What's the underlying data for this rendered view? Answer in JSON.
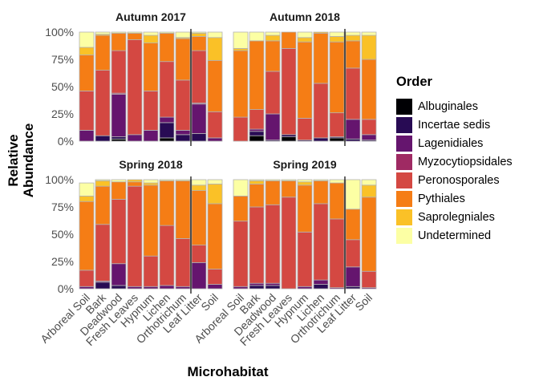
{
  "chart_data": {
    "type": "bar",
    "stacked": true,
    "facet_titles": [
      "Autumn 2017",
      "Autumn 2018",
      "Spring 2018",
      "Spring 2019"
    ],
    "xlabel": "Microhabitat",
    "ylabel": "Relative\nAbundance",
    "ylim": [
      0,
      1
    ],
    "yticks": [
      0,
      0.25,
      0.5,
      0.75,
      1
    ],
    "ytick_labels": [
      "0%",
      "25%",
      "50%",
      "75%",
      "100%"
    ],
    "categories": [
      "Arboreal Soil",
      "Bark",
      "Deadwood",
      "Fresh Leaves",
      "Hypnum",
      "Lichen",
      "Orthotrichum",
      "Leaf Litter",
      "Soil"
    ],
    "legend_title": "Order",
    "legend_position": "right",
    "orders": [
      "Albuginales",
      "Incertae sedis",
      "Lagenidiales",
      "Myzocytiopsidales",
      "Peronosporales",
      "Pythiales",
      "Saprolegniales",
      "Undetermined"
    ],
    "colors": [
      "#000004",
      "#280B54",
      "#65156E",
      "#9F2A63",
      "#D44842",
      "#F57D15",
      "#FAC127",
      "#FCFFA4"
    ],
    "panels": [
      {
        "title": "Autumn 2017",
        "bars": [
          {
            "category": "Arboreal Soil",
            "values": [
              0.0,
              0.0,
              0.1,
              0.0,
              0.36,
              0.33,
              0.07,
              0.14
            ]
          },
          {
            "category": "Bark",
            "values": [
              0.0,
              0.05,
              0.0,
              0.0,
              0.6,
              0.32,
              0.01,
              0.02
            ]
          },
          {
            "category": "Deadwood",
            "values": [
              0.02,
              0.02,
              0.39,
              0.01,
              0.39,
              0.16,
              0.0,
              0.01
            ]
          },
          {
            "category": "Fresh Leaves",
            "values": [
              0.0,
              0.0,
              0.06,
              0.0,
              0.87,
              0.06,
              0.0,
              0.01
            ]
          },
          {
            "category": "Hypnum",
            "values": [
              0.0,
              0.0,
              0.1,
              0.0,
              0.36,
              0.44,
              0.07,
              0.03
            ]
          },
          {
            "category": "Lichen",
            "values": [
              0.03,
              0.14,
              0.05,
              0.0,
              0.51,
              0.26,
              0.0,
              0.01
            ]
          },
          {
            "category": "Orthotrichum",
            "values": [
              0.0,
              0.06,
              0.04,
              0.0,
              0.46,
              0.38,
              0.01,
              0.05
            ]
          },
          {
            "category": "Leaf Litter",
            "values": [
              0.0,
              0.07,
              0.27,
              0.01,
              0.48,
              0.13,
              0.03,
              0.01
            ]
          },
          {
            "category": "Soil",
            "values": [
              0.0,
              0.0,
              0.03,
              0.0,
              0.24,
              0.47,
              0.21,
              0.05
            ]
          }
        ]
      },
      {
        "title": "Autumn 2018",
        "bars": [
          {
            "category": "Arboreal Soil",
            "values": [
              0.0,
              0.0,
              0.0,
              0.0,
              0.22,
              0.61,
              0.02,
              0.15
            ]
          },
          {
            "category": "Bark",
            "values": [
              0.05,
              0.04,
              0.02,
              0.0,
              0.18,
              0.63,
              0.0,
              0.08
            ]
          },
          {
            "category": "Deadwood",
            "values": [
              0.0,
              0.01,
              0.24,
              0.0,
              0.39,
              0.28,
              0.05,
              0.03
            ]
          },
          {
            "category": "Fresh Leaves",
            "values": [
              0.04,
              0.02,
              0.0,
              0.0,
              0.79,
              0.15,
              0.0,
              0.0
            ]
          },
          {
            "category": "Hypnum",
            "values": [
              0.0,
              0.01,
              0.0,
              0.0,
              0.2,
              0.7,
              0.04,
              0.05
            ]
          },
          {
            "category": "Lichen",
            "values": [
              0.0,
              0.03,
              0.0,
              0.0,
              0.5,
              0.46,
              0.01,
              0.0
            ]
          },
          {
            "category": "Orthotrichum",
            "values": [
              0.03,
              0.01,
              0.0,
              0.0,
              0.22,
              0.65,
              0.05,
              0.04
            ]
          },
          {
            "category": "Leaf Litter",
            "values": [
              0.0,
              0.02,
              0.18,
              0.0,
              0.47,
              0.25,
              0.05,
              0.03
            ]
          },
          {
            "category": "Soil",
            "values": [
              0.0,
              0.01,
              0.05,
              0.0,
              0.14,
              0.55,
              0.22,
              0.03
            ]
          }
        ]
      },
      {
        "title": "Spring 2018",
        "bars": [
          {
            "category": "Arboreal Soil",
            "values": [
              0.0,
              0.0,
              0.02,
              0.0,
              0.15,
              0.63,
              0.05,
              0.12
            ]
          },
          {
            "category": "Bark",
            "values": [
              0.0,
              0.06,
              0.01,
              0.0,
              0.52,
              0.35,
              0.05,
              0.01
            ]
          },
          {
            "category": "Deadwood",
            "values": [
              0.0,
              0.03,
              0.2,
              0.0,
              0.59,
              0.16,
              0.0,
              0.02
            ]
          },
          {
            "category": "Fresh Leaves",
            "values": [
              0.0,
              0.0,
              0.02,
              0.0,
              0.92,
              0.04,
              0.02,
              0.0
            ]
          },
          {
            "category": "Hypnum",
            "values": [
              0.0,
              0.0,
              0.02,
              0.0,
              0.28,
              0.65,
              0.02,
              0.03
            ]
          },
          {
            "category": "Lichen",
            "values": [
              0.0,
              0.0,
              0.03,
              0.0,
              0.55,
              0.41,
              0.0,
              0.01
            ]
          },
          {
            "category": "Orthotrichum",
            "values": [
              0.0,
              0.0,
              0.02,
              0.0,
              0.44,
              0.53,
              0.0,
              0.01
            ]
          },
          {
            "category": "Leaf Litter",
            "values": [
              0.0,
              0.0,
              0.24,
              0.0,
              0.16,
              0.5,
              0.05,
              0.05
            ]
          },
          {
            "category": "Soil",
            "values": [
              0.0,
              0.0,
              0.04,
              0.0,
              0.14,
              0.6,
              0.18,
              0.04
            ]
          }
        ]
      },
      {
        "title": "Spring 2019",
        "bars": [
          {
            "category": "Arboreal Soil",
            "values": [
              0.0,
              0.0,
              0.02,
              0.0,
              0.6,
              0.23,
              0.0,
              0.15
            ]
          },
          {
            "category": "Bark",
            "values": [
              0.0,
              0.03,
              0.02,
              0.0,
              0.7,
              0.21,
              0.03,
              0.01
            ]
          },
          {
            "category": "Deadwood",
            "values": [
              0.0,
              0.03,
              0.02,
              0.0,
              0.72,
              0.22,
              0.0,
              0.01
            ]
          },
          {
            "category": "Fresh Leaves",
            "values": [
              0.0,
              0.0,
              0.0,
              0.0,
              0.84,
              0.15,
              0.0,
              0.01
            ]
          },
          {
            "category": "Hypnum",
            "values": [
              0.0,
              0.0,
              0.02,
              0.0,
              0.5,
              0.43,
              0.03,
              0.02
            ]
          },
          {
            "category": "Lichen",
            "values": [
              0.0,
              0.04,
              0.04,
              0.0,
              0.7,
              0.21,
              0.0,
              0.01
            ]
          },
          {
            "category": "Orthotrichum",
            "values": [
              0.0,
              0.0,
              0.01,
              0.0,
              0.63,
              0.33,
              0.0,
              0.03
            ]
          },
          {
            "category": "Leaf Litter",
            "values": [
              0.0,
              0.02,
              0.18,
              0.0,
              0.25,
              0.28,
              0.0,
              0.27
            ]
          },
          {
            "category": "Soil",
            "values": [
              0.0,
              0.0,
              0.01,
              0.0,
              0.15,
              0.68,
              0.11,
              0.05
            ]
          }
        ]
      }
    ]
  }
}
